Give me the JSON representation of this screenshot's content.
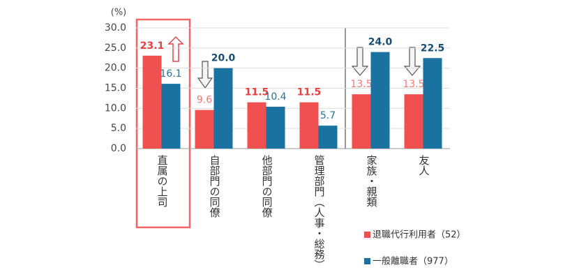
{
  "chart_data": {
    "type": "bar",
    "unit": "(%)",
    "categories": [
      "直属の上司",
      "自部門の同僚",
      "他部門の同僚",
      "管理部門（人事・総務）",
      "家族・親類",
      "友人"
    ],
    "series": [
      {
        "name": "退職代行利用者（52）",
        "color": "#f0504f",
        "values": [
          23.1,
          9.6,
          11.5,
          11.5,
          13.5,
          13.5
        ],
        "value_labels": [
          "23.1",
          "9.6",
          "11.5",
          "11.5",
          "13.5",
          "13.5"
        ]
      },
      {
        "name": "一般離職者（977）",
        "color": "#1a72a0",
        "values": [
          16.1,
          20.0,
          10.4,
          5.7,
          24.0,
          22.5
        ],
        "value_labels": [
          "16.1",
          "20.0",
          "10.4",
          "5.7",
          "24.0",
          "22.5"
        ]
      }
    ],
    "ylim": [
      0,
      30
    ],
    "yticks": [
      {
        "value": 0,
        "label": "0.0"
      },
      {
        "value": 5,
        "label": "5.0"
      },
      {
        "value": 10,
        "label": "10.0"
      },
      {
        "value": 15,
        "label": "15.0"
      },
      {
        "value": 20,
        "label": "20.0"
      },
      {
        "value": 25,
        "label": "25.0"
      },
      {
        "value": 30,
        "label": "30.0"
      }
    ],
    "grid": true
  }
}
